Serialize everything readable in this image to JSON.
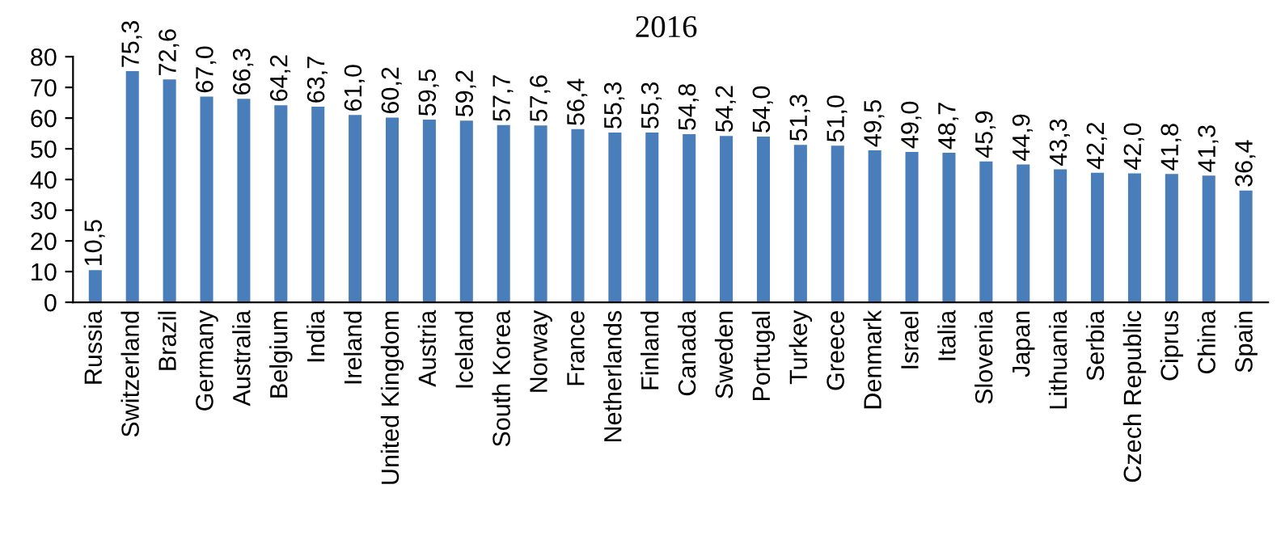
{
  "chart_data": {
    "type": "bar",
    "title": "2016",
    "categories": [
      "Russia",
      "Switzerland",
      "Brazil",
      "Germany",
      "Australia",
      "Belgium",
      "India",
      "Ireland",
      "United Kingdom",
      "Austria",
      "Iceland",
      "South Korea",
      "Norway",
      "France",
      "Netherlands",
      "Finland",
      "Canada",
      "Sweden",
      "Portugal",
      "Turkey",
      "Greece",
      "Denmark",
      "Israel",
      "Italia",
      "Slovenia",
      "Japan",
      "Lithuania",
      "Serbia",
      "Czech Republic",
      "Ciprus",
      "China",
      "Spain"
    ],
    "values": [
      10.5,
      75.3,
      72.6,
      67.0,
      66.3,
      64.2,
      63.7,
      61.0,
      60.2,
      59.5,
      59.2,
      57.7,
      57.6,
      56.4,
      55.3,
      55.3,
      54.8,
      54.2,
      54.0,
      51.3,
      51.0,
      49.5,
      49.0,
      48.7,
      45.9,
      44.9,
      43.3,
      42.2,
      42.0,
      41.8,
      41.3,
      36.4
    ],
    "value_labels": [
      "10,5",
      "75,3",
      "72,6",
      "67,0",
      "66,3",
      "64,2",
      "63,7",
      "61,0",
      "60,2",
      "59,5",
      "59,2",
      "57,7",
      "57,6",
      "56,4",
      "55,3",
      "55,3",
      "54,8",
      "54,2",
      "54,0",
      "51,3",
      "51,0",
      "49,5",
      "49,0",
      "48,7",
      "45,9",
      "44,9",
      "43,3",
      "42,2",
      "42,0",
      "41,8",
      "41,3",
      "36,4"
    ],
    "color": "#4a7ebb",
    "ylim": [
      0,
      80
    ],
    "yticks": [
      0,
      10,
      20,
      30,
      40,
      50,
      60,
      70,
      80
    ],
    "grid": false,
    "legend": false
  }
}
